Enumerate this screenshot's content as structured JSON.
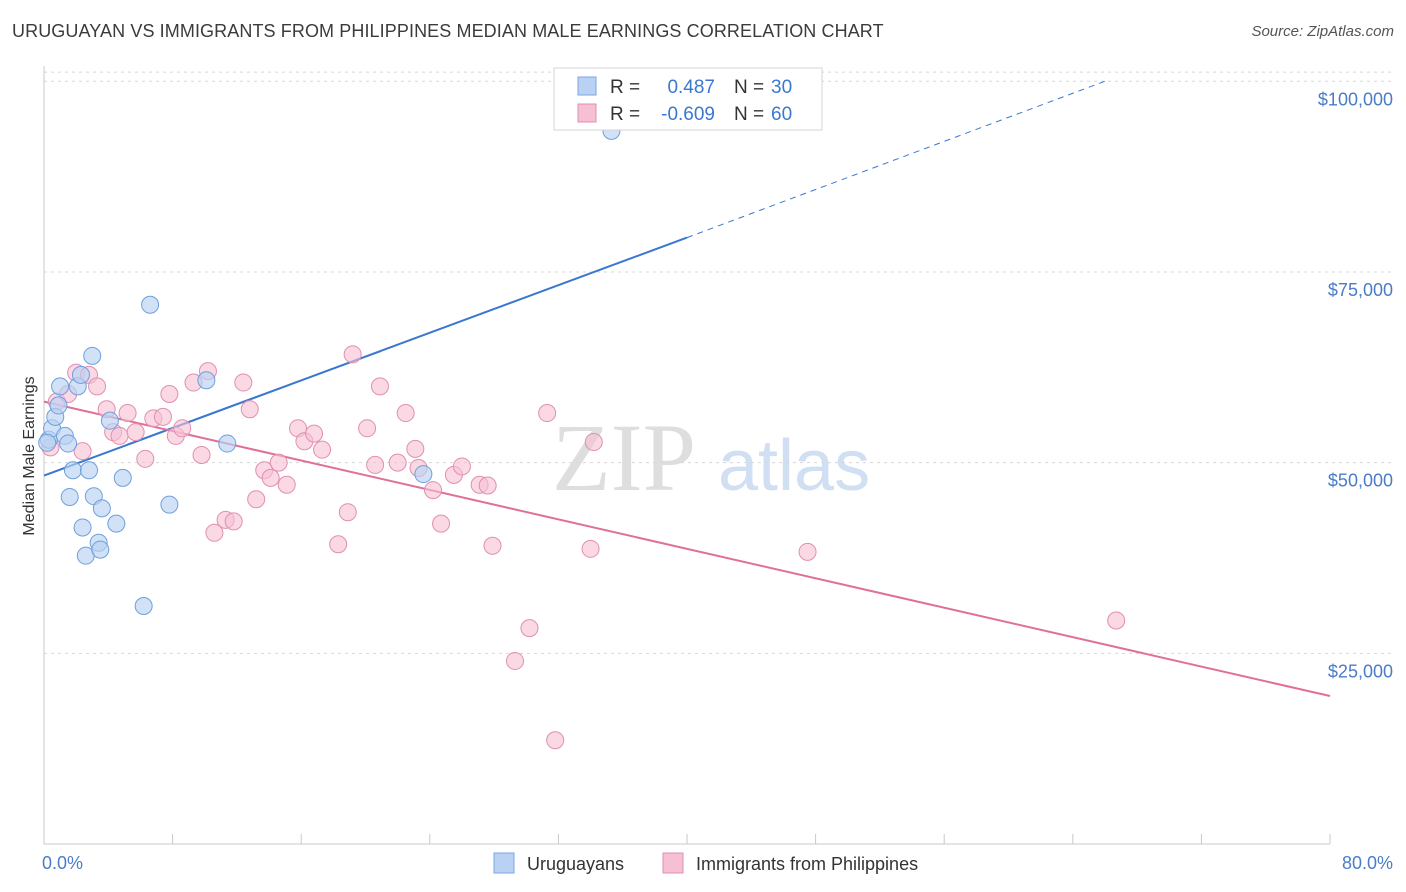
{
  "chart_data": {
    "type": "scatter",
    "title": "URUGUAYAN VS IMMIGRANTS FROM PHILIPPINES MEDIAN MALE EARNINGS CORRELATION CHART",
    "source": "Source: ZipAtlas.com",
    "ylabel": "Median Male Earnings",
    "xlim": [
      0,
      80
    ],
    "ylim": [
      0,
      102000
    ],
    "x_tick_labels": [
      "0.0%",
      "80.0%"
    ],
    "y_ticks": [
      25000,
      50000,
      75000,
      100000
    ],
    "y_tick_labels": [
      "$25,000",
      "$50,000",
      "$75,000",
      "$100,000"
    ],
    "watermark": {
      "zip": "ZIP",
      "atlas": "atlas"
    },
    "colors": {
      "blue": "#3a78d0",
      "blue_fill": "#b9d2f3",
      "pink": "#e07098",
      "pink_fill": "#f6bfd3",
      "grid": "#d8d8d8"
    },
    "legend": [
      {
        "label": "Uruguayans",
        "color": "#b9d2f3",
        "edge": "#7aa6e0"
      },
      {
        "label": "Immigrants from Philippines",
        "color": "#f6bfd3",
        "edge": "#e08fb0"
      }
    ],
    "stats": [
      {
        "r_label": "R =",
        "r": "0.487",
        "n_label": "N =",
        "n": "30"
      },
      {
        "r_label": "R =",
        "r": "-0.609",
        "n_label": "N =",
        "n": "60"
      }
    ],
    "series": [
      {
        "name": "Uruguayans",
        "trend": {
          "x0": 0,
          "y0": 48300,
          "x1": 40,
          "y1": 79500,
          "x_dash_end": 66,
          "y_dash_end": 100000
        },
        "points": [
          [
            0.3,
            53000
          ],
          [
            0.5,
            54500
          ],
          [
            0.7,
            56000
          ],
          [
            0.9,
            57500
          ],
          [
            1.0,
            60000
          ],
          [
            1.3,
            53500
          ],
          [
            1.5,
            52500
          ],
          [
            1.6,
            45500
          ],
          [
            1.8,
            49000
          ],
          [
            2.1,
            60000
          ],
          [
            2.3,
            61500
          ],
          [
            2.4,
            41500
          ],
          [
            2.6,
            37800
          ],
          [
            2.8,
            49000
          ],
          [
            3.0,
            64000
          ],
          [
            3.1,
            45600
          ],
          [
            3.4,
            39500
          ],
          [
            3.5,
            38600
          ],
          [
            3.6,
            44000
          ],
          [
            4.1,
            55500
          ],
          [
            4.5,
            42000
          ],
          [
            4.9,
            48000
          ],
          [
            6.2,
            31200
          ],
          [
            6.6,
            70700
          ],
          [
            7.8,
            44500
          ],
          [
            10.1,
            60800
          ],
          [
            11.4,
            52500
          ],
          [
            23.6,
            48500
          ],
          [
            35.3,
            93500
          ],
          [
            0.2,
            52600
          ]
        ]
      },
      {
        "name": "Immigrants from Philippines",
        "trend": {
          "x0": 0,
          "y0": 58000,
          "x1": 80,
          "y1": 19400
        },
        "points": [
          [
            0.4,
            52000
          ],
          [
            0.8,
            58000
          ],
          [
            1.5,
            59000
          ],
          [
            2.0,
            61800
          ],
          [
            2.4,
            51500
          ],
          [
            2.8,
            61500
          ],
          [
            3.3,
            60000
          ],
          [
            3.9,
            57000
          ],
          [
            4.3,
            54000
          ],
          [
            4.7,
            53500
          ],
          [
            5.2,
            56500
          ],
          [
            5.7,
            54000
          ],
          [
            6.3,
            50500
          ],
          [
            6.8,
            55800
          ],
          [
            7.4,
            56000
          ],
          [
            7.8,
            59000
          ],
          [
            8.2,
            53500
          ],
          [
            8.6,
            54500
          ],
          [
            9.3,
            60500
          ],
          [
            9.8,
            51000
          ],
          [
            10.2,
            62000
          ],
          [
            10.6,
            40800
          ],
          [
            11.3,
            42500
          ],
          [
            11.8,
            42300
          ],
          [
            12.4,
            60500
          ],
          [
            12.8,
            57000
          ],
          [
            13.2,
            45200
          ],
          [
            13.7,
            49000
          ],
          [
            14.1,
            48000
          ],
          [
            14.6,
            50000
          ],
          [
            15.1,
            47100
          ],
          [
            15.8,
            54500
          ],
          [
            16.2,
            52800
          ],
          [
            16.8,
            53800
          ],
          [
            17.3,
            51700
          ],
          [
            18.3,
            39300
          ],
          [
            18.9,
            43500
          ],
          [
            19.2,
            64200
          ],
          [
            20.1,
            54500
          ],
          [
            20.6,
            49700
          ],
          [
            20.9,
            60000
          ],
          [
            22.0,
            50000
          ],
          [
            22.5,
            56500
          ],
          [
            23.1,
            51800
          ],
          [
            23.3,
            49300
          ],
          [
            24.2,
            46400
          ],
          [
            24.7,
            42000
          ],
          [
            25.5,
            48400
          ],
          [
            26.0,
            49500
          ],
          [
            27.1,
            47100
          ],
          [
            27.6,
            47000
          ],
          [
            27.9,
            39100
          ],
          [
            29.3,
            24000
          ],
          [
            30.2,
            28300
          ],
          [
            31.3,
            56500
          ],
          [
            31.8,
            13600
          ],
          [
            34.0,
            38700
          ],
          [
            34.2,
            52700
          ],
          [
            47.5,
            38300
          ],
          [
            66.7,
            29300
          ]
        ]
      }
    ]
  }
}
